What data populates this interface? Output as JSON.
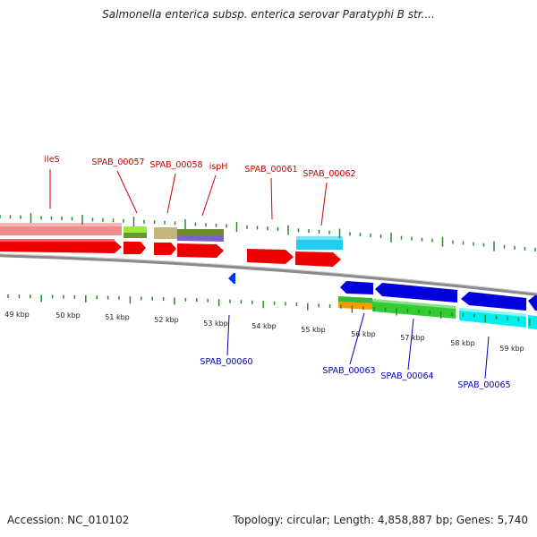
{
  "title": "Salmonella enterica subsp. enterica serovar Paratyphi B str....",
  "footer": {
    "accession": "Accession: NC_010102",
    "topology": "Topology: circular; Length: 4,858,887 bp; Genes: 5,740"
  },
  "colors": {
    "forward_label": "#cc0000",
    "reverse_label": "#0000bb",
    "tick": "#2a8a2a",
    "backbone": "#888888",
    "cds": "#ee0000",
    "reverse_cds": "#0000dd"
  },
  "scale_labels": [
    "49 kbp",
    "50 kbp",
    "51 kbp",
    "52 kbp",
    "53 kbp",
    "54 kbp",
    "55 kbp",
    "56 kbp",
    "57 kbp",
    "58 kbp",
    "59 kbp"
  ],
  "genes_top": [
    {
      "name": "ileS"
    },
    {
      "name": "SPAB_00057"
    },
    {
      "name": "SPAB_00058"
    },
    {
      "name": "ispH"
    },
    {
      "name": "SPAB_00061"
    },
    {
      "name": "SPAB_00062"
    }
  ],
  "genes_bottom": [
    {
      "name": "SPAB_00060"
    },
    {
      "name": "SPAB_00063"
    },
    {
      "name": "SPAB_00064"
    },
    {
      "name": "SPAB_00065"
    }
  ]
}
